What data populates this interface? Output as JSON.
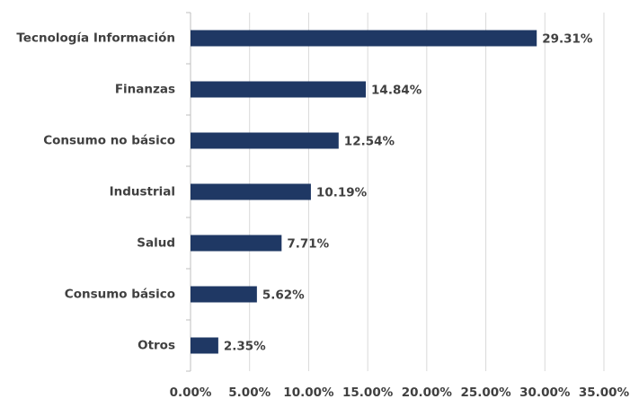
{
  "chart_data": {
    "type": "bar",
    "orientation": "horizontal",
    "categories": [
      "Tecnología Información",
      "Finanzas",
      "Consumo no básico",
      "Industrial",
      "Salud",
      "Consumo básico",
      "Otros"
    ],
    "values": [
      29.31,
      14.84,
      12.54,
      10.19,
      7.71,
      5.62,
      2.35
    ],
    "value_labels": [
      "29.31%",
      "14.84%",
      "12.54%",
      "10.19%",
      "7.71%",
      "5.62%",
      "2.35%"
    ],
    "color": "#1f3864",
    "xlim": [
      0,
      35
    ],
    "xticks": [
      {
        "value": 0,
        "label": "0.00%"
      },
      {
        "value": 5,
        "label": "5.00%"
      },
      {
        "value": 10,
        "label": "10.00%"
      },
      {
        "value": 15,
        "label": "15.00%"
      },
      {
        "value": 20,
        "label": "20.00%"
      },
      {
        "value": 25,
        "label": "25.00%"
      },
      {
        "value": 30,
        "label": "30.00%"
      },
      {
        "value": 35,
        "label": "35.00%"
      }
    ],
    "grid": true
  }
}
